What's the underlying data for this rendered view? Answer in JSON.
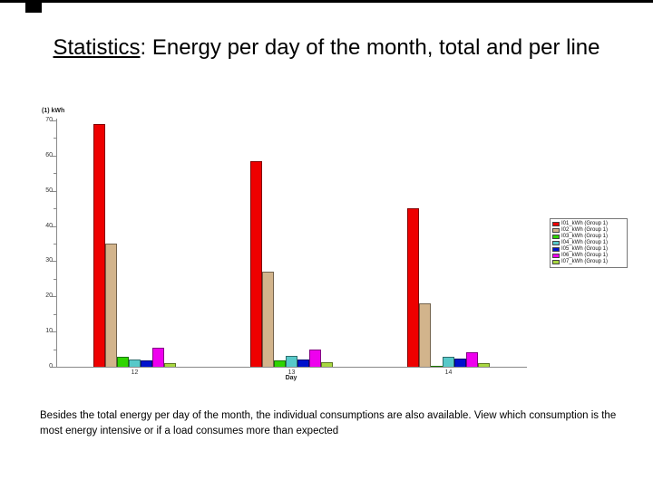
{
  "slide": {
    "title_underlined": "Statistics",
    "title_rest": ": Energy per day of the month, total and per line",
    "footer": "Besides the total energy per day of the month, the individual consumptions are also available. View which consumption is the most energy intensive or if a load consumes more than expected"
  },
  "chart_data": {
    "type": "bar",
    "title": "",
    "ylabel": "(1) kWh",
    "xlabel": "Day",
    "ylim": [
      0,
      70
    ],
    "ytick_major_step": 10,
    "ytick_minor_step": 5,
    "grid": false,
    "legend_position": "right",
    "categories": [
      "12",
      "13",
      "14"
    ],
    "series": [
      {
        "name": "I01_kWh (Group 1)",
        "color": "#ee0000",
        "values": [
          69,
          58.5,
          45
        ]
      },
      {
        "name": "I02_kWh (Group 1)",
        "color": "#d2b48c",
        "values": [
          35,
          27,
          18
        ]
      },
      {
        "name": "I03_kWh (Group 1)",
        "color": "#2fd400",
        "values": [
          2.8,
          1.9,
          0.3
        ]
      },
      {
        "name": "I04_kWh (Group 1)",
        "color": "#57c9c9",
        "values": [
          2.2,
          3.2,
          2.8
        ]
      },
      {
        "name": "I05_kWh (Group 1)",
        "color": "#0011cc",
        "values": [
          1.9,
          2.2,
          2.3
        ]
      },
      {
        "name": "I06_kWh (Group 1)",
        "color": "#ee00ee",
        "values": [
          5.5,
          5.0,
          4.1
        ]
      },
      {
        "name": "I07_kWh (Group 1)",
        "color": "#a8d840",
        "values": [
          1.0,
          1.2,
          1.0
        ]
      }
    ]
  }
}
